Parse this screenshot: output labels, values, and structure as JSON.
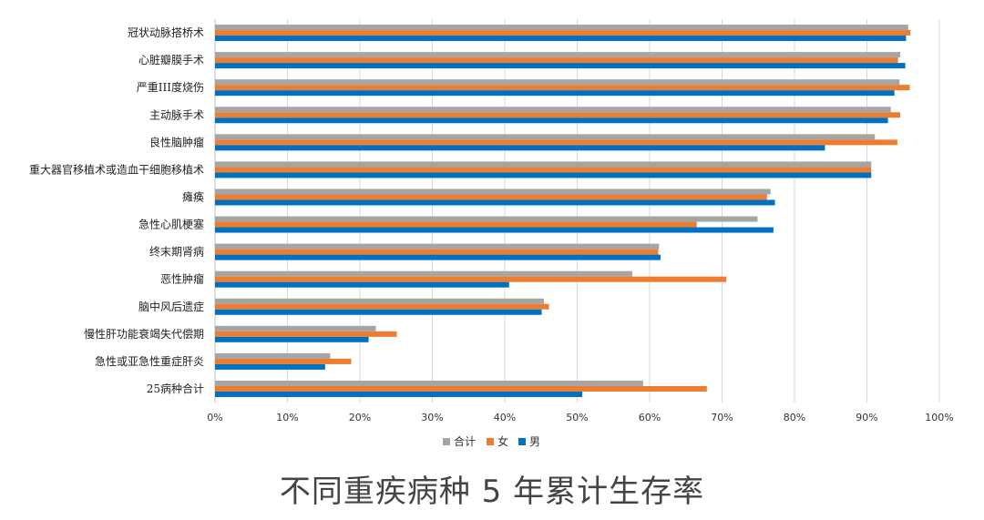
{
  "caption": "不同重疾病种 5 年累计生存率",
  "chart_data": {
    "type": "bar",
    "orientation": "horizontal",
    "categories": [
      "冠状动脉搭桥术",
      "心脏瓣膜手术",
      "严重III度烧伤",
      "主动脉手术",
      "良性脑肿瘤",
      "重大器官移植术或造血干细胞移植术",
      "瘫痪",
      "急性心肌梗塞",
      "终末期肾病",
      "恶性肿瘤",
      "脑中风后遗症",
      "慢性肝功能衰竭失代偿期",
      "急性或亚急性重症肝炎",
      "25病种合计"
    ],
    "series": [
      {
        "name": "合计",
        "color": "#a5a5a5",
        "values": [
          95.7,
          94.6,
          94.5,
          93.3,
          91.1,
          90.6,
          76.7,
          74.9,
          61.3,
          57.6,
          45.4,
          22.2,
          15.9,
          59.1
        ]
      },
      {
        "name": "女",
        "color": "#ed7d31",
        "values": [
          96.0,
          94.3,
          95.9,
          94.6,
          94.2,
          90.6,
          76.2,
          66.5,
          61.2,
          70.6,
          46.1,
          25.1,
          18.8,
          67.9
        ]
      },
      {
        "name": "男",
        "color": "#0070c0",
        "values": [
          95.4,
          95.3,
          93.8,
          92.9,
          84.2,
          90.6,
          77.3,
          77.1,
          61.5,
          40.6,
          45.1,
          21.2,
          15.2,
          50.7
        ]
      }
    ],
    "x_ticks": [
      "0%",
      "10%",
      "20%",
      "30%",
      "40%",
      "50%",
      "60%",
      "70%",
      "80%",
      "90%",
      "100%"
    ],
    "xlim": [
      0,
      100
    ],
    "grid": "vertical",
    "legend": "bottom-center"
  }
}
